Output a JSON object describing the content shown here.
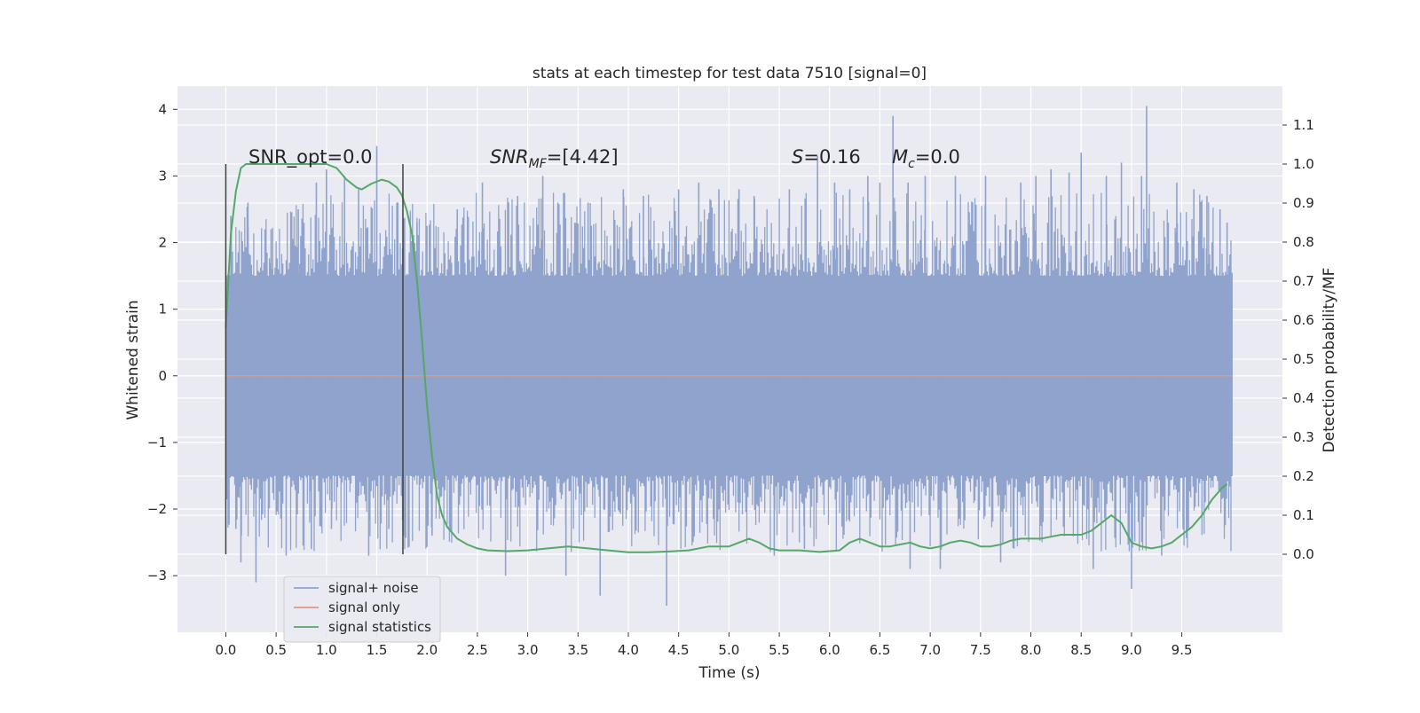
{
  "chart_data": {
    "type": "line",
    "title": "stats at each timestep for test data 7510 [signal=0]",
    "xlabel": "Time (s)",
    "ylabel": "Whitened strain",
    "y2label": "Detection probability/MF",
    "xlim": [
      -0.48,
      10.5
    ],
    "ylim": [
      -3.85,
      4.35
    ],
    "y2lim": [
      -0.2,
      1.2
    ],
    "x_ticks": [
      "0.0",
      "0.5",
      "1.0",
      "1.5",
      "2.0",
      "2.5",
      "3.0",
      "3.5",
      "4.0",
      "4.5",
      "5.0",
      "5.5",
      "6.0",
      "6.5",
      "7.0",
      "7.5",
      "8.0",
      "8.5",
      "9.0",
      "9.5"
    ],
    "y_ticks": [
      "−3",
      "−2",
      "−1",
      "0",
      "1",
      "2",
      "3",
      "4"
    ],
    "y2_ticks": [
      "0.0",
      "0.1",
      "0.2",
      "0.3",
      "0.4",
      "0.5",
      "0.6",
      "0.7",
      "0.8",
      "0.9",
      "1.0",
      "1.1"
    ],
    "grid": true,
    "legend_position": "lower-left",
    "annotations": {
      "snr_opt": "SNR_opt=0.0",
      "snr_mf_base": "SNR",
      "snr_mf_sub": "MF",
      "snr_mf_value": "=[4.42]",
      "s_sym": "S",
      "s_value": "=0.16",
      "mc_sym": "M",
      "mc_sub": "c",
      "mc_value": "=0.0"
    },
    "vertical_markers_x": [
      0.0,
      1.76
    ],
    "series": [
      {
        "name": "signal+ noise",
        "axis": "left",
        "color": "#8fa3cc",
        "x_range": [
          0.0,
          10.0
        ],
        "band": [
          -1.5,
          1.5
        ],
        "spikes": [
          [
            0.05,
            2.4
          ],
          [
            0.1,
            -2.3
          ],
          [
            0.15,
            -2.8
          ],
          [
            0.22,
            2.6
          ],
          [
            0.3,
            -3.1
          ],
          [
            0.45,
            2.2
          ],
          [
            0.6,
            -2.7
          ],
          [
            0.72,
            2.5
          ],
          [
            0.85,
            -2.6
          ],
          [
            0.9,
            2.9
          ],
          [
            1.0,
            3.1
          ],
          [
            1.05,
            -2.3
          ],
          [
            1.18,
            3.0
          ],
          [
            1.32,
            2.8
          ],
          [
            1.42,
            -2.7
          ],
          [
            1.5,
            3.45
          ],
          [
            1.62,
            -2.3
          ],
          [
            1.7,
            2.6
          ],
          [
            1.9,
            2.3
          ],
          [
            2.05,
            -2.4
          ],
          [
            2.3,
            2.5
          ],
          [
            2.55,
            2.9
          ],
          [
            2.78,
            -3.0
          ],
          [
            2.9,
            2.7
          ],
          [
            3.15,
            3.0
          ],
          [
            3.3,
            2.6
          ],
          [
            3.38,
            -3.0
          ],
          [
            3.6,
            2.6
          ],
          [
            3.72,
            -3.3
          ],
          [
            3.95,
            2.8
          ],
          [
            4.15,
            2.7
          ],
          [
            4.38,
            -3.45
          ],
          [
            4.5,
            2.8
          ],
          [
            4.7,
            2.9
          ],
          [
            4.9,
            2.8
          ],
          [
            5.1,
            2.8
          ],
          [
            5.25,
            2.7
          ],
          [
            5.45,
            -2.7
          ],
          [
            5.6,
            2.8
          ],
          [
            5.75,
            -2.6
          ],
          [
            5.88,
            3.3
          ],
          [
            6.05,
            2.9
          ],
          [
            6.2,
            2.8
          ],
          [
            6.38,
            3.0
          ],
          [
            6.5,
            2.9
          ],
          [
            6.63,
            3.9
          ],
          [
            6.78,
            2.9
          ],
          [
            6.8,
            -2.9
          ],
          [
            6.95,
            3.0
          ],
          [
            7.1,
            -2.9
          ],
          [
            7.25,
            3.0
          ],
          [
            7.55,
            3.0
          ],
          [
            7.7,
            -2.8
          ],
          [
            7.9,
            2.9
          ],
          [
            8.05,
            3.0
          ],
          [
            8.2,
            3.1
          ],
          [
            8.38,
            3.05
          ],
          [
            8.5,
            3.35
          ],
          [
            8.62,
            -2.9
          ],
          [
            8.75,
            3.0
          ],
          [
            8.9,
            3.2
          ],
          [
            9.0,
            -3.2
          ],
          [
            9.1,
            3.0
          ],
          [
            9.15,
            4.05
          ],
          [
            9.3,
            -2.7
          ],
          [
            9.45,
            2.9
          ],
          [
            9.62,
            2.8
          ],
          [
            9.75,
            2.7
          ],
          [
            9.88,
            2.5
          ],
          [
            9.95,
            2.3
          ]
        ]
      },
      {
        "name": "signal only",
        "axis": "left",
        "color": "#dd9a82",
        "x": [
          0.0,
          10.0
        ],
        "y": [
          0.0,
          0.0
        ]
      },
      {
        "name": "signal statistics",
        "axis": "right",
        "color": "#55a868",
        "x": [
          0.0,
          0.05,
          0.1,
          0.15,
          0.2,
          0.25,
          0.35,
          0.5,
          0.7,
          0.9,
          1.0,
          1.1,
          1.2,
          1.3,
          1.35,
          1.45,
          1.55,
          1.62,
          1.7,
          1.75,
          1.8,
          1.85,
          1.9,
          1.95,
          2.0,
          2.05,
          2.1,
          2.15,
          2.2,
          2.3,
          2.4,
          2.5,
          2.6,
          2.8,
          3.0,
          3.2,
          3.4,
          3.6,
          3.8,
          4.0,
          4.2,
          4.4,
          4.6,
          4.8,
          5.0,
          5.1,
          5.2,
          5.3,
          5.4,
          5.5,
          5.7,
          5.9,
          6.1,
          6.2,
          6.3,
          6.4,
          6.5,
          6.6,
          6.7,
          6.8,
          6.9,
          7.0,
          7.1,
          7.2,
          7.3,
          7.4,
          7.5,
          7.6,
          7.7,
          7.8,
          7.9,
          8.0,
          8.1,
          8.2,
          8.3,
          8.4,
          8.5,
          8.6,
          8.7,
          8.8,
          8.9,
          9.0,
          9.1,
          9.2,
          9.3,
          9.4,
          9.5,
          9.6,
          9.7,
          9.8,
          9.9,
          9.95
        ],
        "y": [
          0.58,
          0.82,
          0.93,
          0.99,
          1.0,
          1.0,
          1.0,
          1.0,
          1.0,
          1.0,
          1.0,
          0.99,
          0.96,
          0.94,
          0.935,
          0.95,
          0.96,
          0.955,
          0.94,
          0.92,
          0.88,
          0.82,
          0.7,
          0.55,
          0.38,
          0.25,
          0.15,
          0.1,
          0.07,
          0.04,
          0.025,
          0.015,
          0.01,
          0.008,
          0.01,
          0.015,
          0.02,
          0.015,
          0.01,
          0.005,
          0.005,
          0.007,
          0.01,
          0.02,
          0.02,
          0.03,
          0.04,
          0.03,
          0.015,
          0.01,
          0.01,
          0.006,
          0.01,
          0.03,
          0.04,
          0.03,
          0.02,
          0.02,
          0.025,
          0.03,
          0.02,
          0.015,
          0.02,
          0.03,
          0.035,
          0.03,
          0.02,
          0.02,
          0.025,
          0.035,
          0.04,
          0.04,
          0.04,
          0.045,
          0.05,
          0.05,
          0.05,
          0.06,
          0.08,
          0.1,
          0.08,
          0.03,
          0.02,
          0.015,
          0.02,
          0.03,
          0.05,
          0.07,
          0.1,
          0.14,
          0.17,
          0.18
        ]
      }
    ]
  }
}
